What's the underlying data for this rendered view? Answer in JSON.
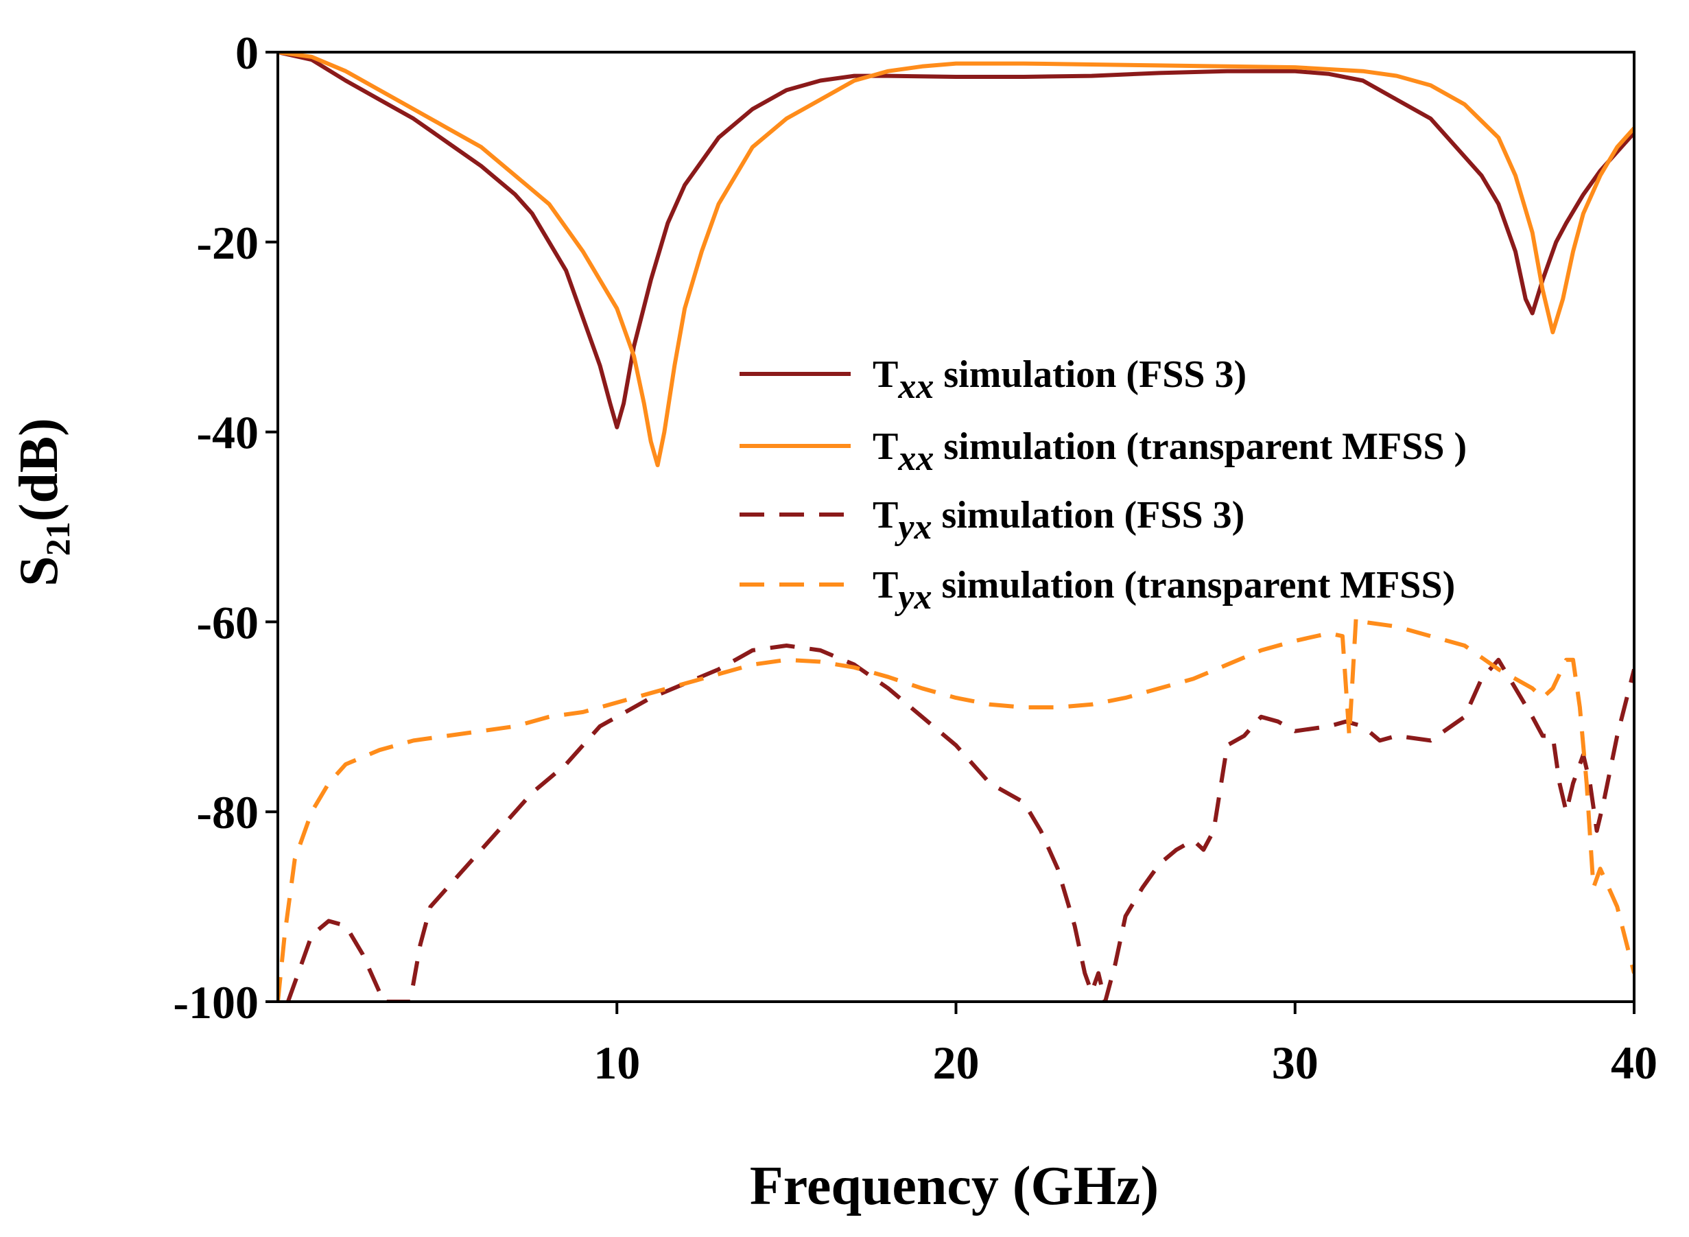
{
  "chart_data": {
    "type": "line",
    "xlabel": "Frequency (GHz)",
    "ylabel": {
      "main": "S",
      "sub": "21",
      "unit": "(dB)"
    },
    "xlim": [
      0,
      40
    ],
    "ylim": [
      -100,
      0
    ],
    "xticks": [
      {
        "value": 10,
        "label": "10"
      },
      {
        "value": 20,
        "label": "20"
      },
      {
        "value": 30,
        "label": "30"
      },
      {
        "value": 40,
        "label": "40"
      }
    ],
    "yticks": [
      {
        "value": 0,
        "label": "0"
      },
      {
        "value": -20,
        "label": "-20"
      },
      {
        "value": -40,
        "label": "-40"
      },
      {
        "value": -60,
        "label": "-60"
      },
      {
        "value": -80,
        "label": "-80"
      },
      {
        "value": -100,
        "label": "-100"
      }
    ],
    "grid": false,
    "legend_position": "center-right",
    "series": [
      {
        "name": "Txx simulation (FSS 3)",
        "legend": {
          "prefix": "T",
          "sub": "xx",
          "rest": " simulation (FSS 3)"
        },
        "color": "#8B1A1A",
        "dash": "solid",
        "points": [
          [
            0,
            0
          ],
          [
            1,
            -0.8
          ],
          [
            2,
            -3
          ],
          [
            3,
            -5
          ],
          [
            4,
            -7
          ],
          [
            5,
            -9.5
          ],
          [
            6,
            -12
          ],
          [
            7,
            -15
          ],
          [
            7.5,
            -17
          ],
          [
            8,
            -20
          ],
          [
            8.5,
            -23
          ],
          [
            9,
            -28
          ],
          [
            9.5,
            -33
          ],
          [
            9.8,
            -37
          ],
          [
            10,
            -39.5
          ],
          [
            10.2,
            -37
          ],
          [
            10.5,
            -31
          ],
          [
            11,
            -24
          ],
          [
            11.5,
            -18
          ],
          [
            12,
            -14
          ],
          [
            13,
            -9
          ],
          [
            14,
            -6
          ],
          [
            15,
            -4
          ],
          [
            16,
            -3
          ],
          [
            17,
            -2.5
          ],
          [
            18,
            -2.5
          ],
          [
            20,
            -2.6
          ],
          [
            22,
            -2.6
          ],
          [
            24,
            -2.5
          ],
          [
            26,
            -2.2
          ],
          [
            28,
            -2
          ],
          [
            30,
            -2
          ],
          [
            31,
            -2.3
          ],
          [
            32,
            -3
          ],
          [
            33,
            -5
          ],
          [
            34,
            -7
          ],
          [
            35,
            -11
          ],
          [
            35.5,
            -13
          ],
          [
            36,
            -16
          ],
          [
            36.5,
            -21
          ],
          [
            36.8,
            -26
          ],
          [
            37,
            -27.5
          ],
          [
            37.3,
            -24
          ],
          [
            37.7,
            -20
          ],
          [
            38,
            -18
          ],
          [
            38.5,
            -15
          ],
          [
            39,
            -12.5
          ],
          [
            39.5,
            -10.5
          ],
          [
            40,
            -8.5
          ]
        ]
      },
      {
        "name": "Txx simulation (transparent MFSS )",
        "legend": {
          "prefix": "T",
          "sub": "xx",
          "rest": " simulation (transparent MFSS )"
        },
        "color": "#FF8C1A",
        "dash": "solid",
        "points": [
          [
            0,
            0
          ],
          [
            1,
            -0.5
          ],
          [
            2,
            -2
          ],
          [
            3,
            -4
          ],
          [
            4,
            -6
          ],
          [
            5,
            -8
          ],
          [
            6,
            -10
          ],
          [
            7,
            -13
          ],
          [
            8,
            -16
          ],
          [
            9,
            -21
          ],
          [
            10,
            -27
          ],
          [
            10.5,
            -32
          ],
          [
            10.8,
            -37
          ],
          [
            11,
            -41
          ],
          [
            11.2,
            -43.5
          ],
          [
            11.4,
            -40
          ],
          [
            11.7,
            -33
          ],
          [
            12,
            -27
          ],
          [
            12.5,
            -21
          ],
          [
            13,
            -16
          ],
          [
            14,
            -10
          ],
          [
            15,
            -7
          ],
          [
            16,
            -5
          ],
          [
            17,
            -3
          ],
          [
            18,
            -2
          ],
          [
            19,
            -1.5
          ],
          [
            20,
            -1.2
          ],
          [
            22,
            -1.2
          ],
          [
            24,
            -1.3
          ],
          [
            26,
            -1.4
          ],
          [
            28,
            -1.5
          ],
          [
            30,
            -1.6
          ],
          [
            32,
            -2
          ],
          [
            33,
            -2.5
          ],
          [
            34,
            -3.5
          ],
          [
            35,
            -5.5
          ],
          [
            36,
            -9
          ],
          [
            36.5,
            -13
          ],
          [
            37,
            -19
          ],
          [
            37.3,
            -25
          ],
          [
            37.6,
            -29.5
          ],
          [
            37.9,
            -26
          ],
          [
            38.2,
            -21
          ],
          [
            38.5,
            -17
          ],
          [
            39,
            -13
          ],
          [
            39.5,
            -10
          ],
          [
            40,
            -8
          ]
        ]
      },
      {
        "name": "Tyx simulation (FSS 3)",
        "legend": {
          "prefix": "T",
          "sub": "yx",
          "rest": " simulation (FSS 3)"
        },
        "color": "#8B1A1A",
        "dash": "dashed",
        "points": [
          [
            0.3,
            -100
          ],
          [
            0.6,
            -97
          ],
          [
            1,
            -93
          ],
          [
            1.5,
            -91.5
          ],
          [
            2,
            -92
          ],
          [
            2.5,
            -95
          ],
          [
            3,
            -99
          ],
          [
            3.1,
            -100
          ],
          [
            3.9,
            -100
          ],
          [
            4.2,
            -94
          ],
          [
            4.5,
            -90
          ],
          [
            5,
            -88
          ],
          [
            5.5,
            -86
          ],
          [
            6,
            -84
          ],
          [
            6.5,
            -82
          ],
          [
            7,
            -80
          ],
          [
            7.5,
            -78
          ],
          [
            8,
            -76.5
          ],
          [
            8.5,
            -75
          ],
          [
            9,
            -73
          ],
          [
            9.5,
            -71
          ],
          [
            10,
            -70
          ],
          [
            10.5,
            -69
          ],
          [
            11,
            -68
          ],
          [
            12,
            -66.5
          ],
          [
            13,
            -65
          ],
          [
            14,
            -63
          ],
          [
            15,
            -62.5
          ],
          [
            16,
            -63
          ],
          [
            17,
            -64.5
          ],
          [
            18,
            -67
          ],
          [
            19,
            -70
          ],
          [
            20,
            -73
          ],
          [
            21,
            -77
          ],
          [
            22,
            -79
          ],
          [
            22.5,
            -82
          ],
          [
            23,
            -86
          ],
          [
            23.5,
            -92
          ],
          [
            23.8,
            -97
          ],
          [
            24,
            -99
          ],
          [
            24.2,
            -97
          ],
          [
            24.4,
            -100
          ],
          [
            24.7,
            -96
          ],
          [
            25,
            -91
          ],
          [
            25.5,
            -88
          ],
          [
            26,
            -85.5
          ],
          [
            26.5,
            -84
          ],
          [
            27,
            -83
          ],
          [
            27.3,
            -84
          ],
          [
            27.6,
            -82
          ],
          [
            28,
            -73
          ],
          [
            28.5,
            -72
          ],
          [
            29,
            -70
          ],
          [
            29.5,
            -70.5
          ],
          [
            30,
            -71.5
          ],
          [
            31,
            -71
          ],
          [
            31.5,
            -70.5
          ],
          [
            32,
            -71
          ],
          [
            32.5,
            -72.5
          ],
          [
            33,
            -72
          ],
          [
            34,
            -72.5
          ],
          [
            35,
            -70
          ],
          [
            35.5,
            -66
          ],
          [
            36,
            -64
          ],
          [
            36.5,
            -67
          ],
          [
            37,
            -70
          ],
          [
            37.3,
            -72
          ],
          [
            37.6,
            -72
          ],
          [
            37.8,
            -77
          ],
          [
            38,
            -80
          ],
          [
            38.2,
            -77
          ],
          [
            38.5,
            -74
          ],
          [
            38.7,
            -77
          ],
          [
            38.9,
            -82
          ],
          [
            39.1,
            -79
          ],
          [
            39.5,
            -72
          ],
          [
            40,
            -65
          ]
        ]
      },
      {
        "name": "Tyx simulation (transparent MFSS)",
        "legend": {
          "prefix": "T",
          "sub": "yx",
          "rest": " simulation (transparent MFSS)"
        },
        "color": "#FF8C1A",
        "dash": "dashed",
        "points": [
          [
            0,
            -100
          ],
          [
            0.2,
            -93
          ],
          [
            0.5,
            -85
          ],
          [
            1,
            -80
          ],
          [
            1.5,
            -77
          ],
          [
            2,
            -75
          ],
          [
            3,
            -73.5
          ],
          [
            4,
            -72.5
          ],
          [
            5,
            -72
          ],
          [
            6,
            -71.5
          ],
          [
            7,
            -71
          ],
          [
            8,
            -70
          ],
          [
            9,
            -69.5
          ],
          [
            10,
            -68.5
          ],
          [
            11,
            -67.5
          ],
          [
            12,
            -66.5
          ],
          [
            13,
            -65.5
          ],
          [
            14,
            -64.5
          ],
          [
            15,
            -64
          ],
          [
            16,
            -64.2
          ],
          [
            17,
            -64.8
          ],
          [
            18,
            -65.8
          ],
          [
            19,
            -67
          ],
          [
            20,
            -68
          ],
          [
            21,
            -68.7
          ],
          [
            22,
            -69
          ],
          [
            23,
            -69
          ],
          [
            24,
            -68.7
          ],
          [
            25,
            -68
          ],
          [
            26,
            -67
          ],
          [
            27,
            -66
          ],
          [
            28,
            -64.5
          ],
          [
            29,
            -63
          ],
          [
            30,
            -62
          ],
          [
            31,
            -61.2
          ],
          [
            31.4,
            -61.5
          ],
          [
            31.6,
            -72
          ],
          [
            31.8,
            -59.5
          ],
          [
            32,
            -60
          ],
          [
            33,
            -60.5
          ],
          [
            34,
            -61.5
          ],
          [
            35,
            -62.5
          ],
          [
            36,
            -65
          ],
          [
            37,
            -67
          ],
          [
            37.3,
            -68
          ],
          [
            37.6,
            -67
          ],
          [
            38,
            -64
          ],
          [
            38.2,
            -64
          ],
          [
            38.4,
            -69
          ],
          [
            38.6,
            -77
          ],
          [
            38.8,
            -88
          ],
          [
            39,
            -86
          ],
          [
            39.5,
            -90
          ],
          [
            40,
            -97
          ]
        ]
      }
    ]
  }
}
